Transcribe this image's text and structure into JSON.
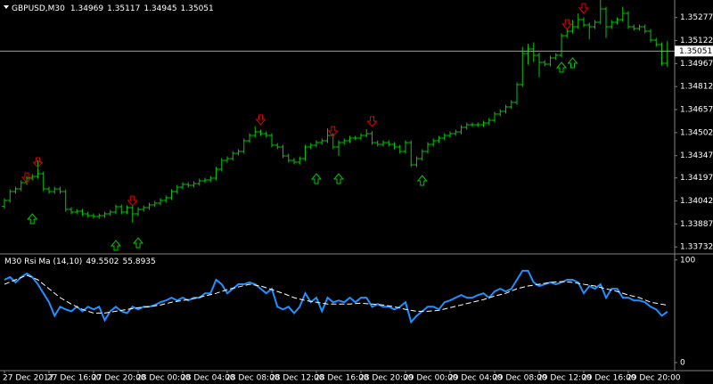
{
  "chart_data": [
    {
      "type": "ohlc",
      "title": "GBPUSD,M30",
      "color": "#00c800",
      "categories": [
        "27 Dec 2017",
        null,
        null,
        null,
        null,
        null,
        null,
        null,
        "27 Dec 16:00",
        null,
        null,
        null,
        null,
        null,
        null,
        null,
        "27 Dec 20:00",
        null,
        null,
        null,
        null,
        null,
        null,
        null,
        "28 Dec 00:00",
        null,
        null,
        null,
        null,
        null,
        null,
        null,
        "28 Dec 04:00",
        null,
        null,
        null,
        null,
        null,
        null,
        null,
        "28 Dec 08:00",
        null,
        null,
        null,
        null,
        null,
        null,
        null,
        "28 Dec 12:00",
        null,
        null,
        null,
        null,
        null,
        null,
        null,
        "28 Dec 16:00",
        null,
        null,
        null,
        null,
        null,
        null,
        null,
        "28 Dec 20:00",
        null,
        null,
        null,
        null,
        null,
        null,
        null,
        "29 Dec 00:00",
        null,
        null,
        null,
        null,
        null,
        null,
        null,
        "29 Dec 04:00",
        null,
        null,
        null,
        null,
        null,
        null,
        null,
        "29 Dec 08:00",
        null,
        null,
        null,
        null,
        null,
        null,
        null,
        "29 Dec 12:00",
        null,
        null,
        null,
        null,
        null,
        null,
        null,
        "29 Dec 16:00",
        null,
        null,
        null,
        null,
        null,
        null,
        null,
        "29 Dec 20:00",
        null,
        null,
        null,
        null,
        null,
        null,
        null
      ],
      "open": [
        1.34005,
        1.34045,
        1.34105,
        1.34123,
        1.34165,
        1.34195,
        1.34207,
        1.34225,
        1.34123,
        1.34105,
        1.34123,
        1.34105,
        1.33985,
        1.33967,
        1.33973,
        1.33955,
        1.33943,
        1.33937,
        1.33943,
        1.33955,
        1.33967,
        1.34003,
        1.33967,
        1.33997,
        1.33955,
        1.33985,
        1.33997,
        1.34015,
        1.34027,
        1.34045,
        1.34063,
        1.34105,
        1.34135,
        1.34153,
        1.34147,
        1.34159,
        1.34177,
        1.34183,
        1.34195,
        1.34255,
        1.34315,
        1.34327,
        1.34363,
        1.34375,
        1.34447,
        1.34483,
        1.34507,
        1.34495,
        1.34483,
        1.34417,
        1.34405,
        1.34345,
        1.34315,
        1.34303,
        1.34327,
        1.34405,
        1.34417,
        1.34435,
        1.34447,
        1.34483,
        1.34405,
        1.34435,
        1.34447,
        1.34465,
        1.34465,
        1.34483,
        1.34495,
        1.34435,
        1.34423,
        1.34435,
        1.34423,
        1.34405,
        1.34375,
        1.34435,
        1.34285,
        1.34327,
        1.34375,
        1.34423,
        1.34447,
        1.34465,
        1.34483,
        1.34495,
        1.34507,
        1.34537,
        1.34555,
        1.34555,
        1.34555,
        1.34567,
        1.34585,
        1.34627,
        1.34645,
        1.34675,
        1.34705,
        1.34825,
        1.35035,
        1.35065,
        1.35023,
        1.34975,
        1.34963,
        1.35005,
        1.35023,
        1.35155,
        1.35185,
        1.35215,
        1.35263,
        1.35227,
        1.35215,
        1.35245,
        1.35335,
        1.35215,
        1.35245,
        1.35263,
        1.35305,
        1.35215,
        1.35203,
        1.35215,
        1.35185,
        1.35125,
        1.35095,
        1.34969
      ],
      "high": [
        1.3406,
        1.3412,
        1.34138,
        1.3418,
        1.3421,
        1.34222,
        1.34315,
        1.3424,
        1.34138,
        1.34138,
        1.34138,
        1.3412,
        1.34,
        1.33988,
        1.33988,
        1.3397,
        1.33958,
        1.33958,
        1.3397,
        1.33982,
        1.34018,
        1.34018,
        1.34012,
        1.34012,
        1.34,
        1.34012,
        1.3403,
        1.34042,
        1.3406,
        1.34078,
        1.3412,
        1.3415,
        1.34168,
        1.34168,
        1.34174,
        1.34192,
        1.34198,
        1.3421,
        1.3427,
        1.3433,
        1.34342,
        1.34378,
        1.3439,
        1.34462,
        1.34498,
        1.34545,
        1.34522,
        1.3451,
        1.34498,
        1.34432,
        1.3442,
        1.3436,
        1.3433,
        1.34342,
        1.3442,
        1.34432,
        1.3445,
        1.34462,
        1.3453,
        1.34498,
        1.3445,
        1.34462,
        1.3448,
        1.3448,
        1.34498,
        1.34525,
        1.3451,
        1.3445,
        1.3445,
        1.3445,
        1.34438,
        1.3442,
        1.3445,
        1.3445,
        1.34342,
        1.3439,
        1.34438,
        1.34462,
        1.3448,
        1.34498,
        1.3451,
        1.34522,
        1.34552,
        1.3457,
        1.3457,
        1.3457,
        1.34582,
        1.346,
        1.34642,
        1.3466,
        1.3469,
        1.3472,
        1.3484,
        1.3508,
        1.351,
        1.3511,
        1.3504,
        1.3499,
        1.3502,
        1.35038,
        1.3517,
        1.352,
        1.3526,
        1.35305,
        1.35278,
        1.35242,
        1.3526,
        1.35395,
        1.3535,
        1.3526,
        1.35278,
        1.3535,
        1.3532,
        1.3523,
        1.3523,
        1.3523,
        1.352,
        1.3514,
        1.3511,
        1.35117
      ],
      "low": [
        1.3399,
        1.3403,
        1.3409,
        1.34108,
        1.3415,
        1.3418,
        1.34192,
        1.34108,
        1.3409,
        1.3409,
        1.3409,
        1.3397,
        1.33952,
        1.33952,
        1.3394,
        1.33928,
        1.33922,
        1.33922,
        1.33928,
        1.3394,
        1.33952,
        1.33952,
        1.33952,
        1.33895,
        1.3394,
        1.3397,
        1.33982,
        1.34,
        1.34012,
        1.3403,
        1.34048,
        1.3409,
        1.3412,
        1.34132,
        1.34132,
        1.34144,
        1.34162,
        1.34168,
        1.3418,
        1.3424,
        1.343,
        1.34312,
        1.34348,
        1.3436,
        1.34432,
        1.34468,
        1.3448,
        1.34468,
        1.34402,
        1.3439,
        1.3433,
        1.343,
        1.34288,
        1.34288,
        1.34312,
        1.3439,
        1.34402,
        1.3442,
        1.34432,
        1.3439,
        1.34345,
        1.3442,
        1.34432,
        1.3445,
        1.3445,
        1.34468,
        1.3442,
        1.34408,
        1.34408,
        1.34408,
        1.3439,
        1.3436,
        1.3436,
        1.3427,
        1.3427,
        1.34312,
        1.3436,
        1.34408,
        1.34432,
        1.3445,
        1.34468,
        1.3448,
        1.34492,
        1.34522,
        1.3454,
        1.3454,
        1.3454,
        1.34552,
        1.3457,
        1.34612,
        1.3463,
        1.3466,
        1.3469,
        1.3481,
        1.3496,
        1.3498,
        1.34875,
        1.34948,
        1.34948,
        1.3499,
        1.35008,
        1.3514,
        1.3517,
        1.352,
        1.35212,
        1.3513,
        1.352,
        1.3523,
        1.3514,
        1.352,
        1.3523,
        1.35248,
        1.352,
        1.35188,
        1.35188,
        1.3517,
        1.3511,
        1.3508,
        1.34954,
        1.34945
      ],
      "close": [
        1.34045,
        1.34105,
        1.34123,
        1.34165,
        1.34195,
        1.34207,
        1.34225,
        1.34123,
        1.34105,
        1.34123,
        1.34105,
        1.33985,
        1.33967,
        1.33973,
        1.33955,
        1.33943,
        1.33937,
        1.33943,
        1.33955,
        1.33967,
        1.34003,
        1.33967,
        1.33997,
        1.33955,
        1.33985,
        1.33997,
        1.34015,
        1.34027,
        1.34045,
        1.34063,
        1.34105,
        1.34135,
        1.34153,
        1.34147,
        1.34159,
        1.34177,
        1.34183,
        1.34195,
        1.34255,
        1.34315,
        1.34327,
        1.34363,
        1.34375,
        1.34447,
        1.34483,
        1.34507,
        1.34495,
        1.34483,
        1.34417,
        1.34405,
        1.34345,
        1.34315,
        1.34303,
        1.34327,
        1.34405,
        1.34417,
        1.34435,
        1.34447,
        1.34483,
        1.34405,
        1.34435,
        1.34447,
        1.34465,
        1.34465,
        1.34483,
        1.34495,
        1.34435,
        1.34423,
        1.34435,
        1.34423,
        1.34405,
        1.34375,
        1.34435,
        1.34285,
        1.34327,
        1.34375,
        1.34423,
        1.34447,
        1.34465,
        1.34483,
        1.34495,
        1.34507,
        1.34537,
        1.34555,
        1.34555,
        1.34555,
        1.34567,
        1.34585,
        1.34627,
        1.34645,
        1.34675,
        1.34705,
        1.34825,
        1.35035,
        1.35065,
        1.35023,
        1.34975,
        1.34963,
        1.35005,
        1.35023,
        1.35155,
        1.35185,
        1.35215,
        1.35263,
        1.35227,
        1.35215,
        1.35245,
        1.35335,
        1.35215,
        1.35245,
        1.35263,
        1.35305,
        1.35215,
        1.35203,
        1.35215,
        1.35185,
        1.35125,
        1.35095,
        1.34969,
        1.35051
      ],
      "arrows_down": {
        "color": "#e00000",
        "x": [
          4,
          6,
          23,
          46,
          59,
          66,
          101,
          104
        ],
        "values": [
          1.34195,
          1.34297,
          1.34039,
          1.34585,
          1.34507,
          1.34573,
          1.35227,
          1.35335
        ]
      },
      "arrows_up": {
        "color": "#00c800",
        "x": [
          5,
          20,
          24,
          56,
          60,
          75,
          100,
          102
        ],
        "values": [
          1.33925,
          1.33745,
          1.33763,
          1.34195,
          1.34195,
          1.34183,
          1.34945,
          1.34975
        ]
      },
      "bid": 1.35051,
      "ylim": [
        1.33691,
        1.35395
      ],
      "yticks": [
        1.35277,
        1.35122,
        1.34967,
        1.34812,
        1.34657,
        1.34502,
        1.34347,
        1.34197,
        1.34042,
        1.33887,
        1.33732
      ]
    },
    {
      "type": "line",
      "title": "M30  Rsi Ma (14,10)",
      "series": [
        {
          "color": "#1e90ff",
          "values": [
            80.7,
            83.3,
            78.1,
            83.3,
            86.8,
            83.3,
            76.3,
            67.5,
            58.8,
            45.6,
            54.4,
            51.8,
            50.0,
            54.4,
            50.0,
            54.4,
            51.8,
            54.4,
            41.2,
            50.0,
            54.4,
            50.0,
            48.2,
            54.4,
            51.8,
            54.4,
            54.4,
            56.1,
            58.8,
            60.5,
            63.2,
            60.5,
            63.2,
            60.5,
            63.2,
            63.2,
            67.5,
            67.5,
            80.7,
            76.3,
            67.5,
            71.9,
            76.3,
            76.3,
            78.1,
            76.3,
            71.9,
            67.5,
            71.9,
            54.4,
            51.8,
            54.4,
            48.2,
            54.4,
            67.5,
            58.8,
            63.2,
            50.0,
            63.2,
            58.8,
            60.5,
            58.8,
            63.2,
            58.8,
            63.2,
            63.2,
            54.4,
            57.0,
            54.4,
            54.4,
            51.8,
            54.4,
            58.8,
            39.5,
            45.6,
            50.0,
            54.4,
            54.4,
            51.8,
            58.8,
            60.5,
            63.2,
            65.8,
            63.2,
            63.2,
            65.8,
            67.5,
            63.2,
            69.3,
            71.9,
            69.3,
            71.9,
            80.7,
            89.5,
            89.5,
            78.1,
            74.6,
            76.3,
            78.1,
            76.3,
            78.1,
            80.7,
            80.7,
            78.1,
            67.5,
            74.6,
            71.9,
            76.3,
            63.2,
            71.9,
            71.9,
            63.2,
            63.2,
            60.5,
            60.5,
            58.8,
            54.4,
            51.8,
            45.6,
            49.5502
          ]
        },
        {
          "color": "#ffffff",
          "dashed": true,
          "x": [
            0,
            2,
            4,
            6,
            8,
            10,
            12,
            14,
            16,
            18,
            20,
            22,
            24,
            26,
            28,
            30,
            32,
            34,
            36,
            38,
            40,
            42,
            44,
            46,
            48,
            50,
            52,
            54,
            56,
            58,
            60,
            62,
            64,
            66,
            68,
            70,
            72,
            74,
            76,
            78,
            80,
            82,
            84,
            86,
            88,
            90,
            92,
            94,
            96,
            98,
            100,
            102,
            104,
            106,
            108,
            110,
            112,
            114,
            116,
            119
          ],
          "values": [
            76.3,
            80.7,
            85.1,
            80.7,
            71.9,
            63.2,
            57.0,
            51.8,
            48.2,
            48.2,
            50.0,
            51.8,
            53.5,
            54.4,
            56.1,
            58.8,
            60.5,
            62.3,
            64.9,
            67.5,
            71.1,
            73.7,
            76.3,
            74.6,
            71.1,
            67.5,
            63.2,
            60.5,
            58.8,
            57.0,
            57.0,
            57.0,
            57.9,
            57.0,
            56.1,
            54.4,
            51.8,
            50.0,
            50.0,
            50.9,
            53.5,
            56.1,
            58.8,
            61.4,
            64.9,
            67.5,
            71.9,
            74.6,
            76.3,
            78.1,
            78.9,
            78.1,
            76.3,
            74.6,
            71.9,
            69.3,
            65.8,
            63.2,
            58.8,
            55.8935
          ]
        }
      ],
      "ylim": [
        -7,
        105
      ],
      "yticks": [
        0,
        100
      ]
    }
  ]
}
